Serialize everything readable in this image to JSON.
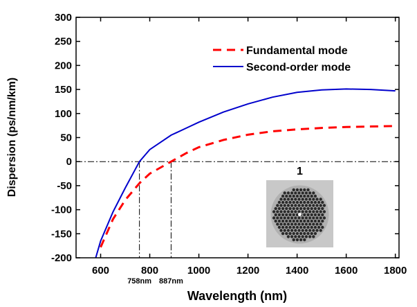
{
  "chart_data": {
    "type": "line",
    "xlabel": "Wavelength (nm)",
    "ylabel": "Dispersion (ps/nm/km)",
    "x": [
      580,
      600,
      650,
      700,
      758,
      800,
      887,
      950,
      1000,
      1100,
      1200,
      1300,
      1400,
      1500,
      1600,
      1700,
      1800
    ],
    "series": [
      {
        "name": "Fundamental mode",
        "color": "#ff0000",
        "dash": true,
        "values": [
          null,
          -178,
          -120,
          -80,
          -45,
          -25,
          0,
          18,
          30,
          45,
          56,
          63,
          67,
          70,
          72,
          73,
          74
        ]
      },
      {
        "name": "Second-order mode",
        "color": "#0000cc",
        "dash": false,
        "values": [
          -200,
          -165,
          -105,
          -55,
          0,
          25,
          55,
          70,
          82,
          103,
          120,
          134,
          144,
          149,
          151,
          150,
          147
        ]
      }
    ],
    "xlim": [
      500,
      1815
    ],
    "ylim": [
      -200,
      300
    ],
    "xticks": [
      600,
      800,
      1000,
      1200,
      1400,
      1600,
      1800
    ],
    "yticks": [
      -200,
      -150,
      -100,
      -50,
      0,
      50,
      100,
      150,
      200,
      250,
      300
    ],
    "hline": 0,
    "annotations": [
      {
        "x": 758,
        "label": "758nm"
      },
      {
        "x": 887,
        "label": "887nm"
      }
    ],
    "inset_label": "1",
    "legend": "upper right"
  }
}
